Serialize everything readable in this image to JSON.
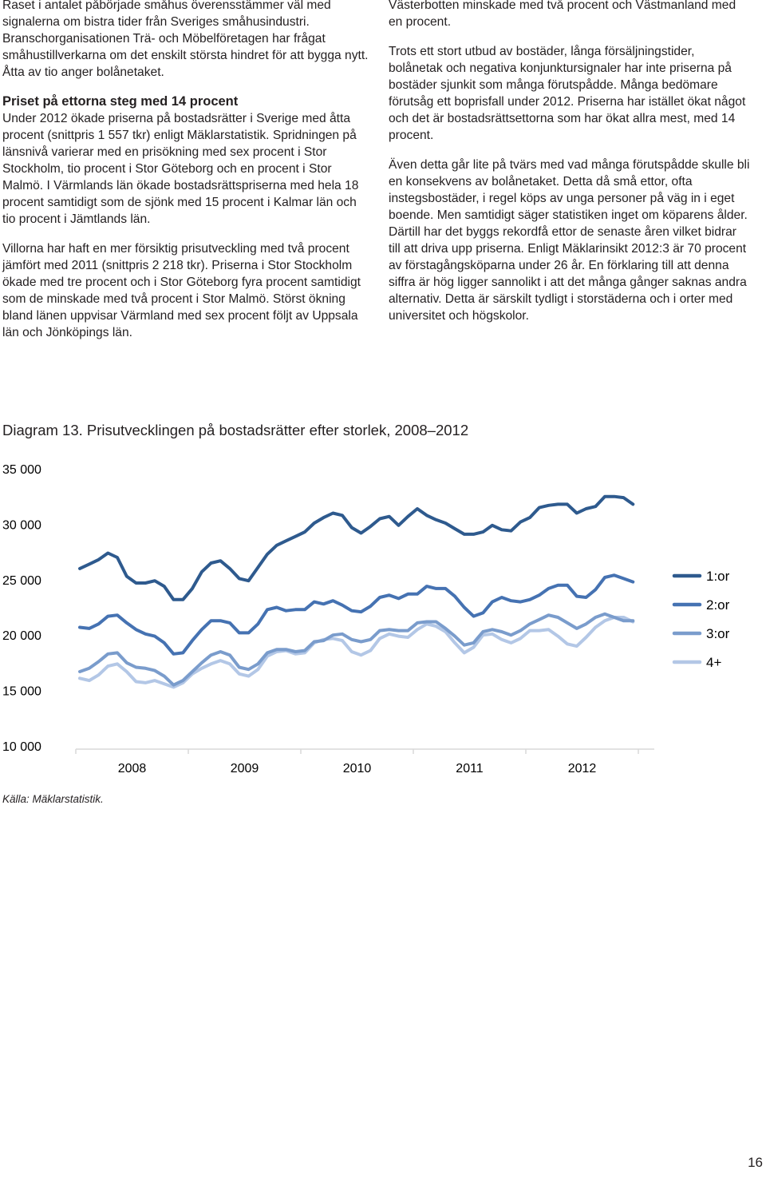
{
  "left_column": {
    "p1": "Raset i antalet påbörjade småhus överensstämmer väl med signalerna om bistra tider från Sveriges småhusindustri. Branschorganisationen Trä- och Möbelföretagen har frågat småhustillverkarna om det enskilt största hindret för att bygga nytt. Åtta av tio anger bolånetaket.",
    "heading": "Priset på ettorna steg med 14 procent",
    "p2": "Under 2012 ökade priserna på bostadsrätter i Sverige med åtta procent (snittpris 1 557 tkr) enligt Mäklarstatistik. Spridningen på länsnivå varierar med en prisökning med sex procent i Stor Stockholm, tio procent i Stor Göteborg och en procent i Stor Malmö. I Värmlands län ökade bostadsrättspriserna med hela 18 procent samtidigt som de sjönk med 15 procent i Kalmar län och tio procent i Jämtlands län.",
    "p3": "Villorna har haft en mer försiktig prisutveckling med två procent jämfört med 2011 (snittpris 2 218 tkr). Priserna i Stor Stockholm ökade med tre procent och i Stor Göteborg fyra procent samtidigt som de minskade med två procent i Stor Malmö. Störst ökning bland länen uppvisar Värmland med sex procent följt av Uppsala län och Jönköpings län."
  },
  "right_column": {
    "p1": "Västerbotten minskade med två procent och Västmanland med en procent.",
    "p2": "Trots ett stort utbud av bostäder, långa försäljningstider, bolånetak och negativa konjunktursignaler har inte priserna på bostäder sjunkit som många förutspådde. Många bedömare förutsåg ett boprisfall under 2012. Priserna har istället ökat något och det är bostadsrättsettorna som har ökat allra mest, med 14 procent.",
    "p3": "Även detta går lite på tvärs med vad många förutspådde skulle bli en konsekvens av bolånetaket. Detta då små ettor, ofta instegsbostäder, i regel köps av unga personer på väg in i eget boende. Men samtidigt säger statistiken inget om köparens ålder. Därtill har det byggs rekordfå ettor de senaste åren vilket bidrar till att driva upp priserna. Enligt Mäklarinsikt 2012:3 är 70 procent av förstagångsköparna under 26 år. En förklaring till att denna siffra är hög ligger sannolikt i att det många gånger saknas andra alternativ. Detta är särskilt tydligt i storstäderna och i orter med universitet och högskolor."
  },
  "diagram_caption": "Diagram 13. Prisutvecklingen på bostadsrätter efter storlek, 2008–2012",
  "source": "Källa: Mäklarstatistik.",
  "page_number": "16",
  "chart_data": {
    "type": "line",
    "title": "",
    "xlabel": "",
    "ylabel": "",
    "ylim": [
      10000,
      35000
    ],
    "y_ticks": [
      "35 000",
      "30 000",
      "25 000",
      "20 000",
      "15 000",
      "10 000"
    ],
    "x_tick_labels": [
      "2008",
      "2009",
      "2010",
      "2011",
      "2012"
    ],
    "x_start": 2008.0,
    "x_step_months": 1,
    "grid": false,
    "legend_position": "right",
    "series": [
      {
        "name": "1:or",
        "color": "#2e5a8e",
        "values": [
          26000,
          26400,
          26800,
          27400,
          27000,
          25300,
          24700,
          24700,
          24900,
          24400,
          23200,
          23200,
          24200,
          25700,
          26500,
          26700,
          26000,
          25100,
          24900,
          26100,
          27300,
          28100,
          28500,
          28900,
          29300,
          30100,
          30600,
          31000,
          30800,
          29700,
          29200,
          29800,
          30500,
          30700,
          29900,
          30700,
          31400,
          30800,
          30400,
          30100,
          29600,
          29100,
          29100,
          29300,
          29900,
          29500,
          29400,
          30200,
          30600,
          31500,
          31700,
          31800,
          31800,
          31000,
          31400,
          31600,
          32500,
          32500,
          32400,
          31800
        ]
      },
      {
        "name": "2:or",
        "color": "#4572b2",
        "values": [
          20700,
          20600,
          21000,
          21700,
          21800,
          21100,
          20500,
          20100,
          19900,
          19300,
          18300,
          18400,
          19500,
          20500,
          21300,
          21300,
          21100,
          20200,
          20200,
          21000,
          22300,
          22500,
          22200,
          22300,
          22300,
          23000,
          22800,
          23100,
          22700,
          22200,
          22100,
          22600,
          23400,
          23600,
          23300,
          23700,
          23700,
          24400,
          24200,
          24200,
          23500,
          22500,
          21700,
          22000,
          23000,
          23400,
          23100,
          23000,
          23200,
          23600,
          24200,
          24500,
          24500,
          23500,
          23400,
          24100,
          25200,
          25400,
          25100,
          24800
        ]
      },
      {
        "name": "3:or",
        "color": "#7a9ccc",
        "values": [
          16700,
          17000,
          17600,
          18300,
          18400,
          17500,
          17100,
          17000,
          16800,
          16300,
          15500,
          15900,
          16700,
          17500,
          18200,
          18500,
          18200,
          17100,
          16900,
          17400,
          18400,
          18700,
          18700,
          18500,
          18600,
          19400,
          19500,
          20000,
          20100,
          19600,
          19400,
          19600,
          20400,
          20500,
          20400,
          20400,
          21100,
          21200,
          21200,
          20600,
          19900,
          19100,
          19300,
          20300,
          20500,
          20300,
          20000,
          20400,
          21000,
          21400,
          21800,
          21600,
          21100,
          20600,
          21000,
          21600,
          21900,
          21600,
          21300,
          21300
        ]
      },
      {
        "name": "4+",
        "color": "#b3c7e6",
        "values": [
          16100,
          15900,
          16400,
          17200,
          17400,
          16700,
          15800,
          15700,
          15900,
          15600,
          15300,
          15700,
          16500,
          17000,
          17400,
          17700,
          17400,
          16500,
          16300,
          16900,
          18100,
          18500,
          18600,
          18300,
          18400,
          19300,
          19600,
          19700,
          19500,
          18500,
          18200,
          18600,
          19700,
          20100,
          19900,
          19800,
          20500,
          21000,
          20800,
          20300,
          19300,
          18400,
          18900,
          20000,
          20100,
          19600,
          19300,
          19700,
          20400,
          20400,
          20500,
          19900,
          19200,
          19000,
          19800,
          20700,
          21300,
          21600,
          21600,
          21200
        ]
      }
    ]
  }
}
